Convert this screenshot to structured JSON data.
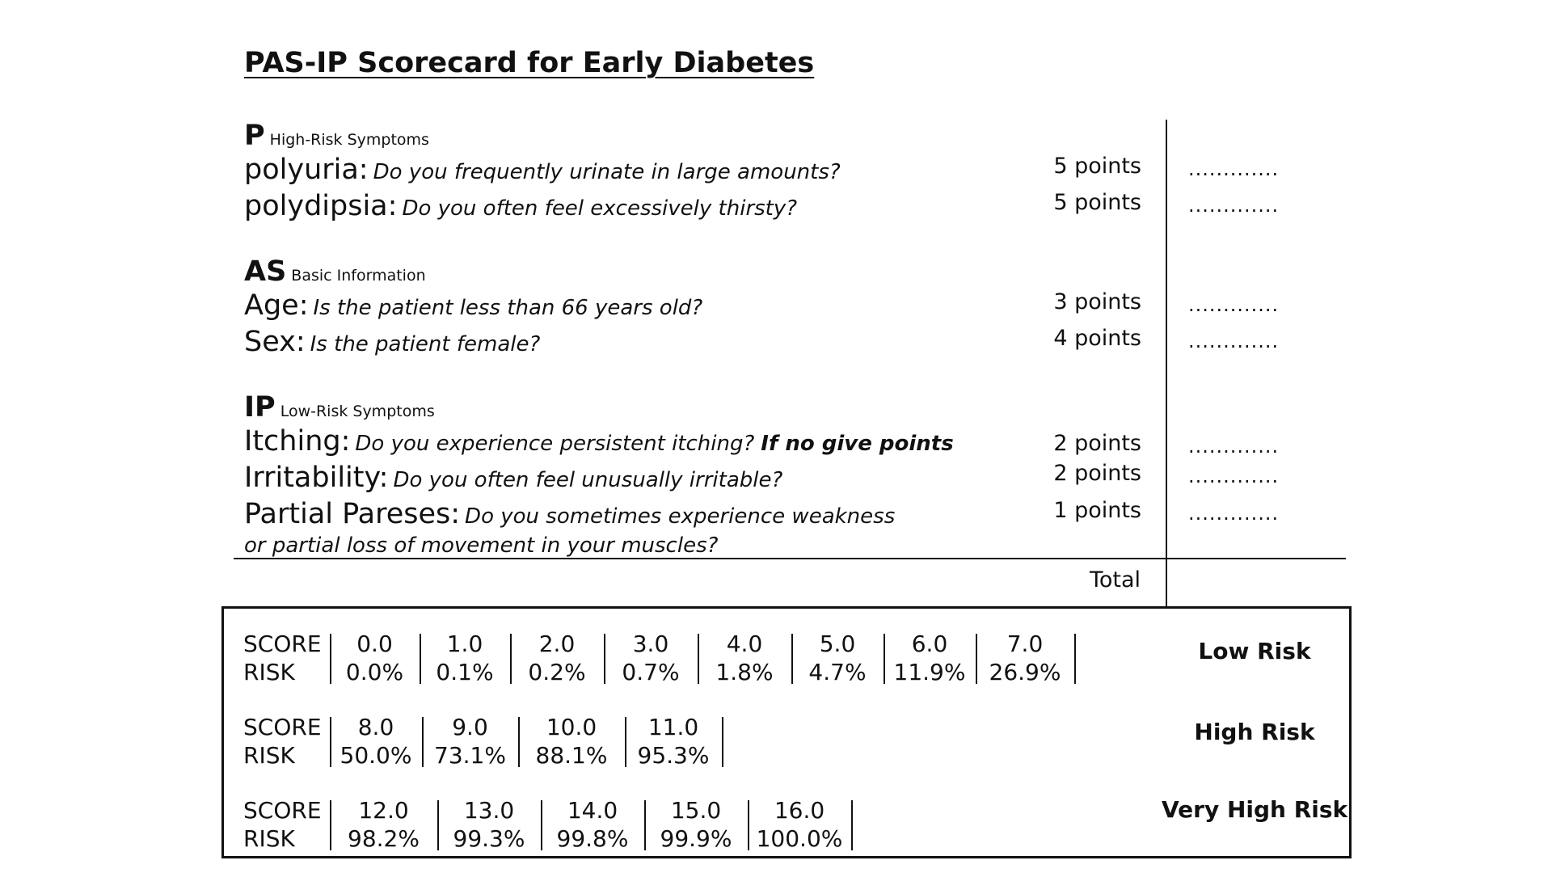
{
  "title": "PAS-IP Scorecard for Early Diabetes",
  "sections": [
    {
      "letters": "P",
      "subtitle": "High-Risk Symptoms",
      "items": [
        {
          "name": "polyuria:",
          "question": "Do you frequently urinate in large amounts?",
          "points": "5 points",
          "blank": "............."
        },
        {
          "name": "polydipsia:",
          "question": "Do you often feel excessively thirsty?",
          "points": "5 points",
          "blank": "............."
        }
      ]
    },
    {
      "letters": "AS",
      "subtitle": "Basic Information",
      "items": [
        {
          "name": "Age:",
          "question": "Is the patient less than 66 years old?",
          "points": "3 points",
          "blank": "............."
        },
        {
          "name": "Sex:",
          "question": "Is the patient female?",
          "points": "4 points",
          "blank": "............."
        }
      ]
    },
    {
      "letters": "IP",
      "subtitle": "Low-Risk Symptoms",
      "items": [
        {
          "name": "Itching:",
          "question": "Do you experience persistent itching?",
          "emphasis": "If no give points",
          "points": "2 points",
          "blank": "............."
        },
        {
          "name": "Irritability:",
          "question": "Do you often feel unusually irritable?",
          "points": "2 points",
          "blank": "............."
        },
        {
          "name": "Partial Pareses:",
          "question": "Do you sometimes experience weakness",
          "question_line2": "or partial loss of movement in your muscles?",
          "points": "1 points",
          "blank": "............."
        }
      ]
    }
  ],
  "total_label": "Total",
  "risk_table": {
    "score_label": "SCORE",
    "risk_label": "RISK",
    "groups": [
      {
        "category": "Low Risk",
        "scores": [
          "0.0",
          "1.0",
          "2.0",
          "3.0",
          "4.0",
          "5.0",
          "6.0",
          "7.0"
        ],
        "risks": [
          "0.0%",
          "0.1%",
          "0.2%",
          "0.7%",
          "1.8%",
          "4.7%",
          "11.9%",
          "26.9%"
        ]
      },
      {
        "category": "High Risk",
        "scores": [
          "8.0",
          "9.0",
          "10.0",
          "11.0"
        ],
        "risks": [
          "50.0%",
          "73.1%",
          "88.1%",
          "95.3%"
        ]
      },
      {
        "category": "Very High Risk",
        "scores": [
          "12.0",
          "13.0",
          "14.0",
          "15.0",
          "16.0"
        ],
        "risks": [
          "98.2%",
          "99.3%",
          "99.8%",
          "99.9%",
          "100.0%"
        ]
      }
    ]
  }
}
